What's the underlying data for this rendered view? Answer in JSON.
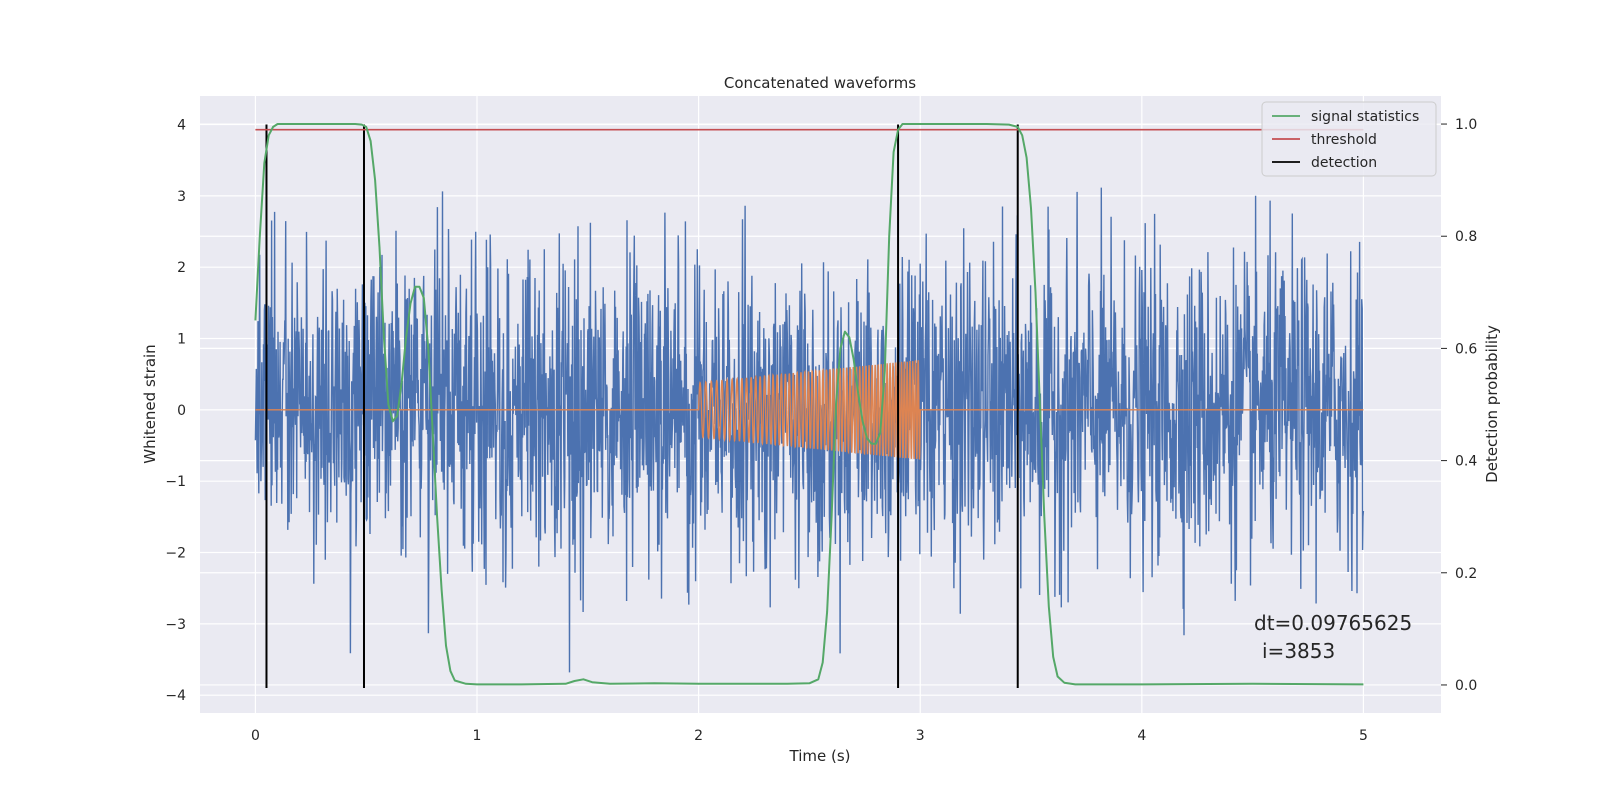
{
  "chart_data": {
    "type": "line",
    "title": "Concatenated waveforms",
    "xlabel": "Time (s)",
    "ylabel": "Whitened strain",
    "ylabel_right": "Detection probability",
    "xlim": [
      -0.25,
      5.35
    ],
    "ylim": [
      -4.25,
      4.4
    ],
    "ylim_right": [
      -0.05,
      1.05
    ],
    "x_ticks": [
      0,
      1,
      2,
      3,
      4,
      5
    ],
    "y_ticks": [
      -4,
      -3,
      -2,
      -1,
      0,
      1,
      2,
      3,
      4
    ],
    "y_ticks_right": [
      0.0,
      0.2,
      0.4,
      0.6,
      0.8,
      1.0
    ],
    "x_tick_labels": [
      "0",
      "1",
      "2",
      "3",
      "4",
      "5"
    ],
    "y_tick_labels": [
      "−4",
      "−3",
      "−2",
      "−1",
      "0",
      "1",
      "2",
      "3",
      "4"
    ],
    "y_tick_labels_right": [
      "0.0",
      "0.2",
      "0.4",
      "0.6",
      "0.8",
      "1.0"
    ],
    "grid": true,
    "legend_position": "top-right",
    "colors": {
      "background": "#eaeaf2",
      "grid": "#ffffff",
      "strain": "#4c72b0",
      "injection": "#dd8452",
      "signal_statistics": "#55a868",
      "threshold": "#c44e52",
      "detection": "#000000"
    },
    "series": [
      {
        "name": "signal statistics",
        "axis": "right",
        "x": [
          0.0,
          0.02,
          0.04,
          0.06,
          0.08,
          0.1,
          0.15,
          0.2,
          0.3,
          0.4,
          0.45,
          0.48,
          0.5,
          0.52,
          0.54,
          0.56,
          0.58,
          0.6,
          0.62,
          0.64,
          0.66,
          0.68,
          0.7,
          0.72,
          0.74,
          0.76,
          0.78,
          0.8,
          0.82,
          0.84,
          0.86,
          0.88,
          0.9,
          0.95,
          1.0,
          1.2,
          1.4,
          1.44,
          1.48,
          1.52,
          1.6,
          1.8,
          2.0,
          2.2,
          2.4,
          2.5,
          2.54,
          2.56,
          2.58,
          2.6,
          2.62,
          2.64,
          2.66,
          2.68,
          2.7,
          2.72,
          2.74,
          2.76,
          2.78,
          2.8,
          2.82,
          2.84,
          2.86,
          2.88,
          2.9,
          2.92,
          2.95,
          3.0,
          3.1,
          3.2,
          3.3,
          3.4,
          3.44,
          3.46,
          3.48,
          3.5,
          3.52,
          3.54,
          3.56,
          3.58,
          3.6,
          3.62,
          3.65,
          3.7,
          3.8,
          4.0,
          4.5,
          5.0
        ],
        "values": [
          0.65,
          0.8,
          0.93,
          0.98,
          0.995,
          1.0,
          1.0,
          1.0,
          1.0,
          1.0,
          1.0,
          0.999,
          0.995,
          0.97,
          0.9,
          0.78,
          0.62,
          0.5,
          0.47,
          0.48,
          0.54,
          0.62,
          0.68,
          0.71,
          0.71,
          0.69,
          0.6,
          0.45,
          0.3,
          0.17,
          0.07,
          0.025,
          0.008,
          0.002,
          0.001,
          0.001,
          0.002,
          0.007,
          0.01,
          0.005,
          0.002,
          0.003,
          0.002,
          0.002,
          0.002,
          0.003,
          0.01,
          0.04,
          0.13,
          0.3,
          0.5,
          0.6,
          0.63,
          0.62,
          0.58,
          0.52,
          0.47,
          0.44,
          0.43,
          0.43,
          0.45,
          0.56,
          0.8,
          0.95,
          0.99,
          1.0,
          1.0,
          1.0,
          1.0,
          1.0,
          1.0,
          0.999,
          0.995,
          0.98,
          0.94,
          0.85,
          0.7,
          0.5,
          0.3,
          0.14,
          0.05,
          0.015,
          0.004,
          0.001,
          0.001,
          0.001,
          0.002,
          0.001
        ]
      },
      {
        "name": "threshold",
        "axis": "right",
        "x": [
          0.0,
          5.0
        ],
        "values": [
          0.99,
          0.99
        ]
      },
      {
        "name": "detection",
        "axis": "left",
        "x": [
          0.05,
          0.49,
          2.9,
          3.44
        ],
        "values": [
          4.0,
          4.0,
          4.0,
          4.0
        ]
      }
    ],
    "annotations": [
      "dt=0.09765625",
      "i=3853"
    ]
  }
}
